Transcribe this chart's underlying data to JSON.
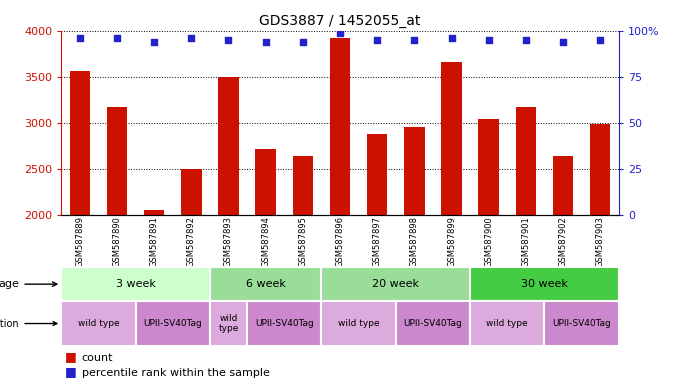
{
  "title": "GDS3887 / 1452055_at",
  "samples": [
    "GSM587889",
    "GSM587890",
    "GSM587891",
    "GSM587892",
    "GSM587893",
    "GSM587894",
    "GSM587895",
    "GSM587896",
    "GSM587897",
    "GSM587898",
    "GSM587899",
    "GSM587900",
    "GSM587901",
    "GSM587902",
    "GSM587903"
  ],
  "counts": [
    3560,
    3170,
    2060,
    2500,
    3500,
    2720,
    2640,
    3920,
    2880,
    2950,
    3660,
    3040,
    3170,
    2640,
    2990
  ],
  "percentile_ranks": [
    96,
    96,
    94,
    96,
    95,
    94,
    94,
    99,
    95,
    95,
    96,
    95,
    95,
    94,
    95
  ],
  "ylim_left": [
    2000,
    4000
  ],
  "ylim_right": [
    0,
    100
  ],
  "yticks_left": [
    2000,
    2500,
    3000,
    3500,
    4000
  ],
  "yticks_right": [
    0,
    25,
    50,
    75,
    100
  ],
  "bar_color": "#cc1100",
  "dot_color": "#2222cc",
  "age_groups": [
    {
      "label": "3 week",
      "start": 0,
      "end": 3,
      "color": "#ccffcc"
    },
    {
      "label": "6 week",
      "start": 4,
      "end": 6,
      "color": "#99dd99"
    },
    {
      "label": "20 week",
      "start": 7,
      "end": 10,
      "color": "#99dd99"
    },
    {
      "label": "30 week",
      "start": 11,
      "end": 14,
      "color": "#44cc44"
    }
  ],
  "genotype_groups": [
    {
      "label": "wild type",
      "start": 0,
      "end": 1,
      "color": "#ddaadd"
    },
    {
      "label": "UPII-SV40Tag",
      "start": 2,
      "end": 3,
      "color": "#cc88cc"
    },
    {
      "label": "wild\ntype",
      "start": 4,
      "end": 4,
      "color": "#ddaadd"
    },
    {
      "label": "UPII-SV40Tag",
      "start": 5,
      "end": 6,
      "color": "#cc88cc"
    },
    {
      "label": "wild type",
      "start": 7,
      "end": 8,
      "color": "#ddaadd"
    },
    {
      "label": "UPII-SV40Tag",
      "start": 9,
      "end": 10,
      "color": "#cc88cc"
    },
    {
      "label": "wild type",
      "start": 11,
      "end": 12,
      "color": "#ddaadd"
    },
    {
      "label": "UPII-SV40Tag",
      "start": 13,
      "end": 14,
      "color": "#cc88cc"
    }
  ],
  "left_axis_color": "#cc1100",
  "right_axis_color": "#2222cc",
  "background_color": "#ffffff",
  "figsize": [
    6.8,
    3.84
  ],
  "dpi": 100
}
